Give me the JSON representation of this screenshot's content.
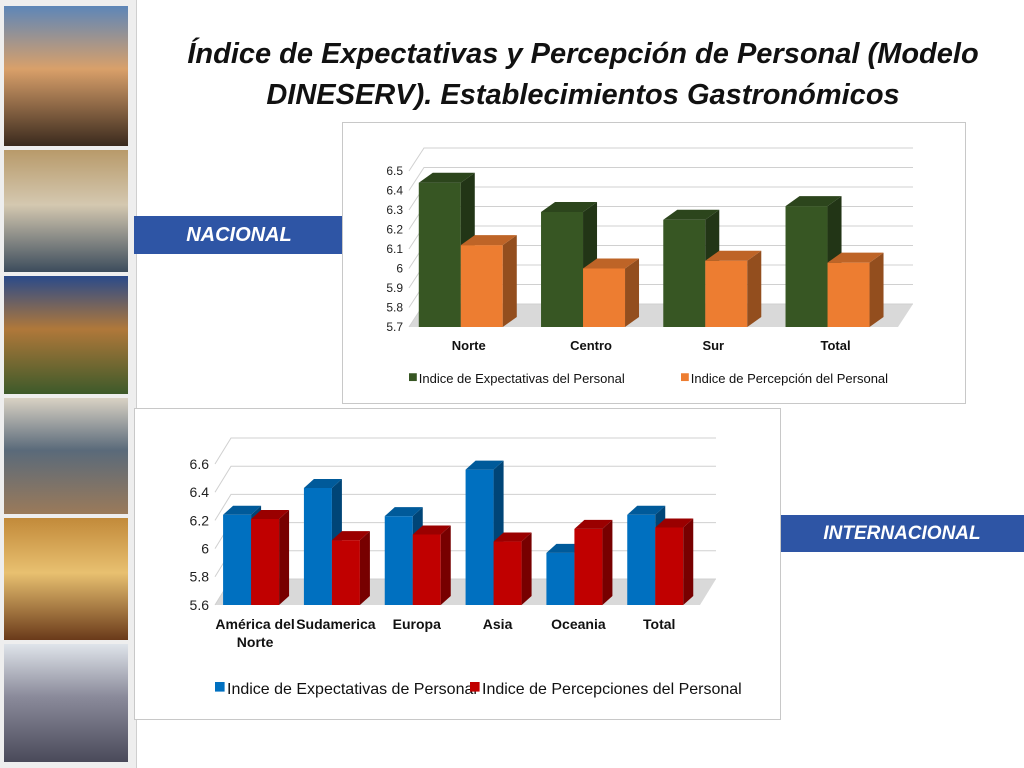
{
  "slide": {
    "title": "Índice de Expectativas y Percepción de Personal (Modelo DINESERV). Establecimientos Gastronómicos",
    "label_nacional": "NACIONAL",
    "label_internacional": "INTERNACIONAL"
  },
  "photos": [
    {
      "icon": "pool-cathedral-photo",
      "colors": [
        "#5d86b8",
        "#3a2a1e",
        "#d9a06a"
      ]
    },
    {
      "icon": "street-crowd-photo",
      "colors": [
        "#b89a6a",
        "#3c4c5c",
        "#d4c8b0"
      ]
    },
    {
      "icon": "terrace-mountain-photo",
      "colors": [
        "#2a4a8a",
        "#3d5a2a",
        "#b0783a"
      ]
    },
    {
      "icon": "church-plaza-photo",
      "colors": [
        "#d9d2c4",
        "#9a7a5a",
        "#5a6a7a"
      ]
    },
    {
      "icon": "hotel-room-photo",
      "colors": [
        "#c28a3a",
        "#6a3a1a",
        "#e8c070"
      ]
    },
    {
      "icon": "mall-crowd-photo",
      "colors": [
        "#dfe4ea",
        "#4a4a5a",
        "#8a8a9a"
      ]
    }
  ],
  "colors": {
    "band": "#2E55A5",
    "nacional_expect": "#375623",
    "nacional_percep": "#ED7D31",
    "internacional_expect": "#0070C0",
    "internacional_percep": "#C00000"
  },
  "chart_data": [
    {
      "type": "bar",
      "categories": [
        "Norte",
        "Centro",
        "Sur",
        "Total"
      ],
      "series": [
        {
          "name": "Indice de Expectativas del Personal",
          "values": [
            6.44,
            6.29,
            6.25,
            6.32
          ]
        },
        {
          "name": "Indice de Percepción del Personal",
          "values": [
            6.12,
            6.0,
            6.04,
            6.03
          ]
        }
      ],
      "yticks": [
        "5.7",
        "5.8",
        "5.9",
        "6",
        "6.1",
        "6.2",
        "6.3",
        "6.4",
        "6.5"
      ],
      "ylim": [
        5.7,
        6.5
      ],
      "grid": true,
      "legend": "bottom"
    },
    {
      "type": "bar",
      "categories": [
        "América del Norte",
        "Sudamerica",
        "Europa",
        "Asia",
        "Oceania",
        "Total"
      ],
      "series": [
        {
          "name": "Indice de Expectativas de Personal",
          "values": [
            6.24,
            6.43,
            6.23,
            6.56,
            5.97,
            6.24
          ]
        },
        {
          "name": "Indice de Percepciones  del Personal",
          "values": [
            6.21,
            6.06,
            6.1,
            6.05,
            6.14,
            6.15
          ]
        }
      ],
      "yticks": [
        "5.6",
        "5.8",
        "6",
        "6.2",
        "6.4",
        "6.6"
      ],
      "ylim": [
        5.6,
        6.6
      ],
      "grid": true,
      "legend": "bottom"
    }
  ]
}
